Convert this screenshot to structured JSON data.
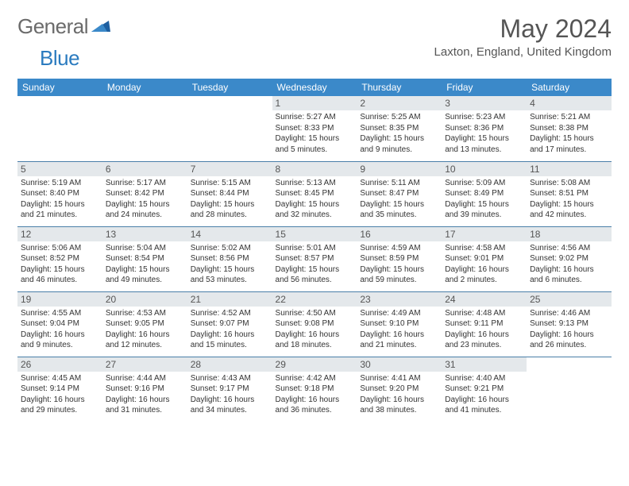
{
  "brand": {
    "text1": "General",
    "text2": "Blue"
  },
  "title": "May 2024",
  "location": "Laxton, England, United Kingdom",
  "colors": {
    "header_bg": "#3b89c9",
    "header_text": "#ffffff",
    "daynum_bg": "#e4e8eb",
    "border": "#4a7fa8",
    "body_text": "#333333",
    "title_text": "#555555"
  },
  "day_headers": [
    "Sunday",
    "Monday",
    "Tuesday",
    "Wednesday",
    "Thursday",
    "Friday",
    "Saturday"
  ],
  "weeks": [
    [
      {
        "n": "",
        "sunrise": "",
        "sunset": "",
        "daylight": ""
      },
      {
        "n": "",
        "sunrise": "",
        "sunset": "",
        "daylight": ""
      },
      {
        "n": "",
        "sunrise": "",
        "sunset": "",
        "daylight": ""
      },
      {
        "n": "1",
        "sunrise": "Sunrise: 5:27 AM",
        "sunset": "Sunset: 8:33 PM",
        "daylight": "Daylight: 15 hours and 5 minutes."
      },
      {
        "n": "2",
        "sunrise": "Sunrise: 5:25 AM",
        "sunset": "Sunset: 8:35 PM",
        "daylight": "Daylight: 15 hours and 9 minutes."
      },
      {
        "n": "3",
        "sunrise": "Sunrise: 5:23 AM",
        "sunset": "Sunset: 8:36 PM",
        "daylight": "Daylight: 15 hours and 13 minutes."
      },
      {
        "n": "4",
        "sunrise": "Sunrise: 5:21 AM",
        "sunset": "Sunset: 8:38 PM",
        "daylight": "Daylight: 15 hours and 17 minutes."
      }
    ],
    [
      {
        "n": "5",
        "sunrise": "Sunrise: 5:19 AM",
        "sunset": "Sunset: 8:40 PM",
        "daylight": "Daylight: 15 hours and 21 minutes."
      },
      {
        "n": "6",
        "sunrise": "Sunrise: 5:17 AM",
        "sunset": "Sunset: 8:42 PM",
        "daylight": "Daylight: 15 hours and 24 minutes."
      },
      {
        "n": "7",
        "sunrise": "Sunrise: 5:15 AM",
        "sunset": "Sunset: 8:44 PM",
        "daylight": "Daylight: 15 hours and 28 minutes."
      },
      {
        "n": "8",
        "sunrise": "Sunrise: 5:13 AM",
        "sunset": "Sunset: 8:45 PM",
        "daylight": "Daylight: 15 hours and 32 minutes."
      },
      {
        "n": "9",
        "sunrise": "Sunrise: 5:11 AM",
        "sunset": "Sunset: 8:47 PM",
        "daylight": "Daylight: 15 hours and 35 minutes."
      },
      {
        "n": "10",
        "sunrise": "Sunrise: 5:09 AM",
        "sunset": "Sunset: 8:49 PM",
        "daylight": "Daylight: 15 hours and 39 minutes."
      },
      {
        "n": "11",
        "sunrise": "Sunrise: 5:08 AM",
        "sunset": "Sunset: 8:51 PM",
        "daylight": "Daylight: 15 hours and 42 minutes."
      }
    ],
    [
      {
        "n": "12",
        "sunrise": "Sunrise: 5:06 AM",
        "sunset": "Sunset: 8:52 PM",
        "daylight": "Daylight: 15 hours and 46 minutes."
      },
      {
        "n": "13",
        "sunrise": "Sunrise: 5:04 AM",
        "sunset": "Sunset: 8:54 PM",
        "daylight": "Daylight: 15 hours and 49 minutes."
      },
      {
        "n": "14",
        "sunrise": "Sunrise: 5:02 AM",
        "sunset": "Sunset: 8:56 PM",
        "daylight": "Daylight: 15 hours and 53 minutes."
      },
      {
        "n": "15",
        "sunrise": "Sunrise: 5:01 AM",
        "sunset": "Sunset: 8:57 PM",
        "daylight": "Daylight: 15 hours and 56 minutes."
      },
      {
        "n": "16",
        "sunrise": "Sunrise: 4:59 AM",
        "sunset": "Sunset: 8:59 PM",
        "daylight": "Daylight: 15 hours and 59 minutes."
      },
      {
        "n": "17",
        "sunrise": "Sunrise: 4:58 AM",
        "sunset": "Sunset: 9:01 PM",
        "daylight": "Daylight: 16 hours and 2 minutes."
      },
      {
        "n": "18",
        "sunrise": "Sunrise: 4:56 AM",
        "sunset": "Sunset: 9:02 PM",
        "daylight": "Daylight: 16 hours and 6 minutes."
      }
    ],
    [
      {
        "n": "19",
        "sunrise": "Sunrise: 4:55 AM",
        "sunset": "Sunset: 9:04 PM",
        "daylight": "Daylight: 16 hours and 9 minutes."
      },
      {
        "n": "20",
        "sunrise": "Sunrise: 4:53 AM",
        "sunset": "Sunset: 9:05 PM",
        "daylight": "Daylight: 16 hours and 12 minutes."
      },
      {
        "n": "21",
        "sunrise": "Sunrise: 4:52 AM",
        "sunset": "Sunset: 9:07 PM",
        "daylight": "Daylight: 16 hours and 15 minutes."
      },
      {
        "n": "22",
        "sunrise": "Sunrise: 4:50 AM",
        "sunset": "Sunset: 9:08 PM",
        "daylight": "Daylight: 16 hours and 18 minutes."
      },
      {
        "n": "23",
        "sunrise": "Sunrise: 4:49 AM",
        "sunset": "Sunset: 9:10 PM",
        "daylight": "Daylight: 16 hours and 21 minutes."
      },
      {
        "n": "24",
        "sunrise": "Sunrise: 4:48 AM",
        "sunset": "Sunset: 9:11 PM",
        "daylight": "Daylight: 16 hours and 23 minutes."
      },
      {
        "n": "25",
        "sunrise": "Sunrise: 4:46 AM",
        "sunset": "Sunset: 9:13 PM",
        "daylight": "Daylight: 16 hours and 26 minutes."
      }
    ],
    [
      {
        "n": "26",
        "sunrise": "Sunrise: 4:45 AM",
        "sunset": "Sunset: 9:14 PM",
        "daylight": "Daylight: 16 hours and 29 minutes."
      },
      {
        "n": "27",
        "sunrise": "Sunrise: 4:44 AM",
        "sunset": "Sunset: 9:16 PM",
        "daylight": "Daylight: 16 hours and 31 minutes."
      },
      {
        "n": "28",
        "sunrise": "Sunrise: 4:43 AM",
        "sunset": "Sunset: 9:17 PM",
        "daylight": "Daylight: 16 hours and 34 minutes."
      },
      {
        "n": "29",
        "sunrise": "Sunrise: 4:42 AM",
        "sunset": "Sunset: 9:18 PM",
        "daylight": "Daylight: 16 hours and 36 minutes."
      },
      {
        "n": "30",
        "sunrise": "Sunrise: 4:41 AM",
        "sunset": "Sunset: 9:20 PM",
        "daylight": "Daylight: 16 hours and 38 minutes."
      },
      {
        "n": "31",
        "sunrise": "Sunrise: 4:40 AM",
        "sunset": "Sunset: 9:21 PM",
        "daylight": "Daylight: 16 hours and 41 minutes."
      },
      {
        "n": "",
        "sunrise": "",
        "sunset": "",
        "daylight": ""
      }
    ]
  ]
}
